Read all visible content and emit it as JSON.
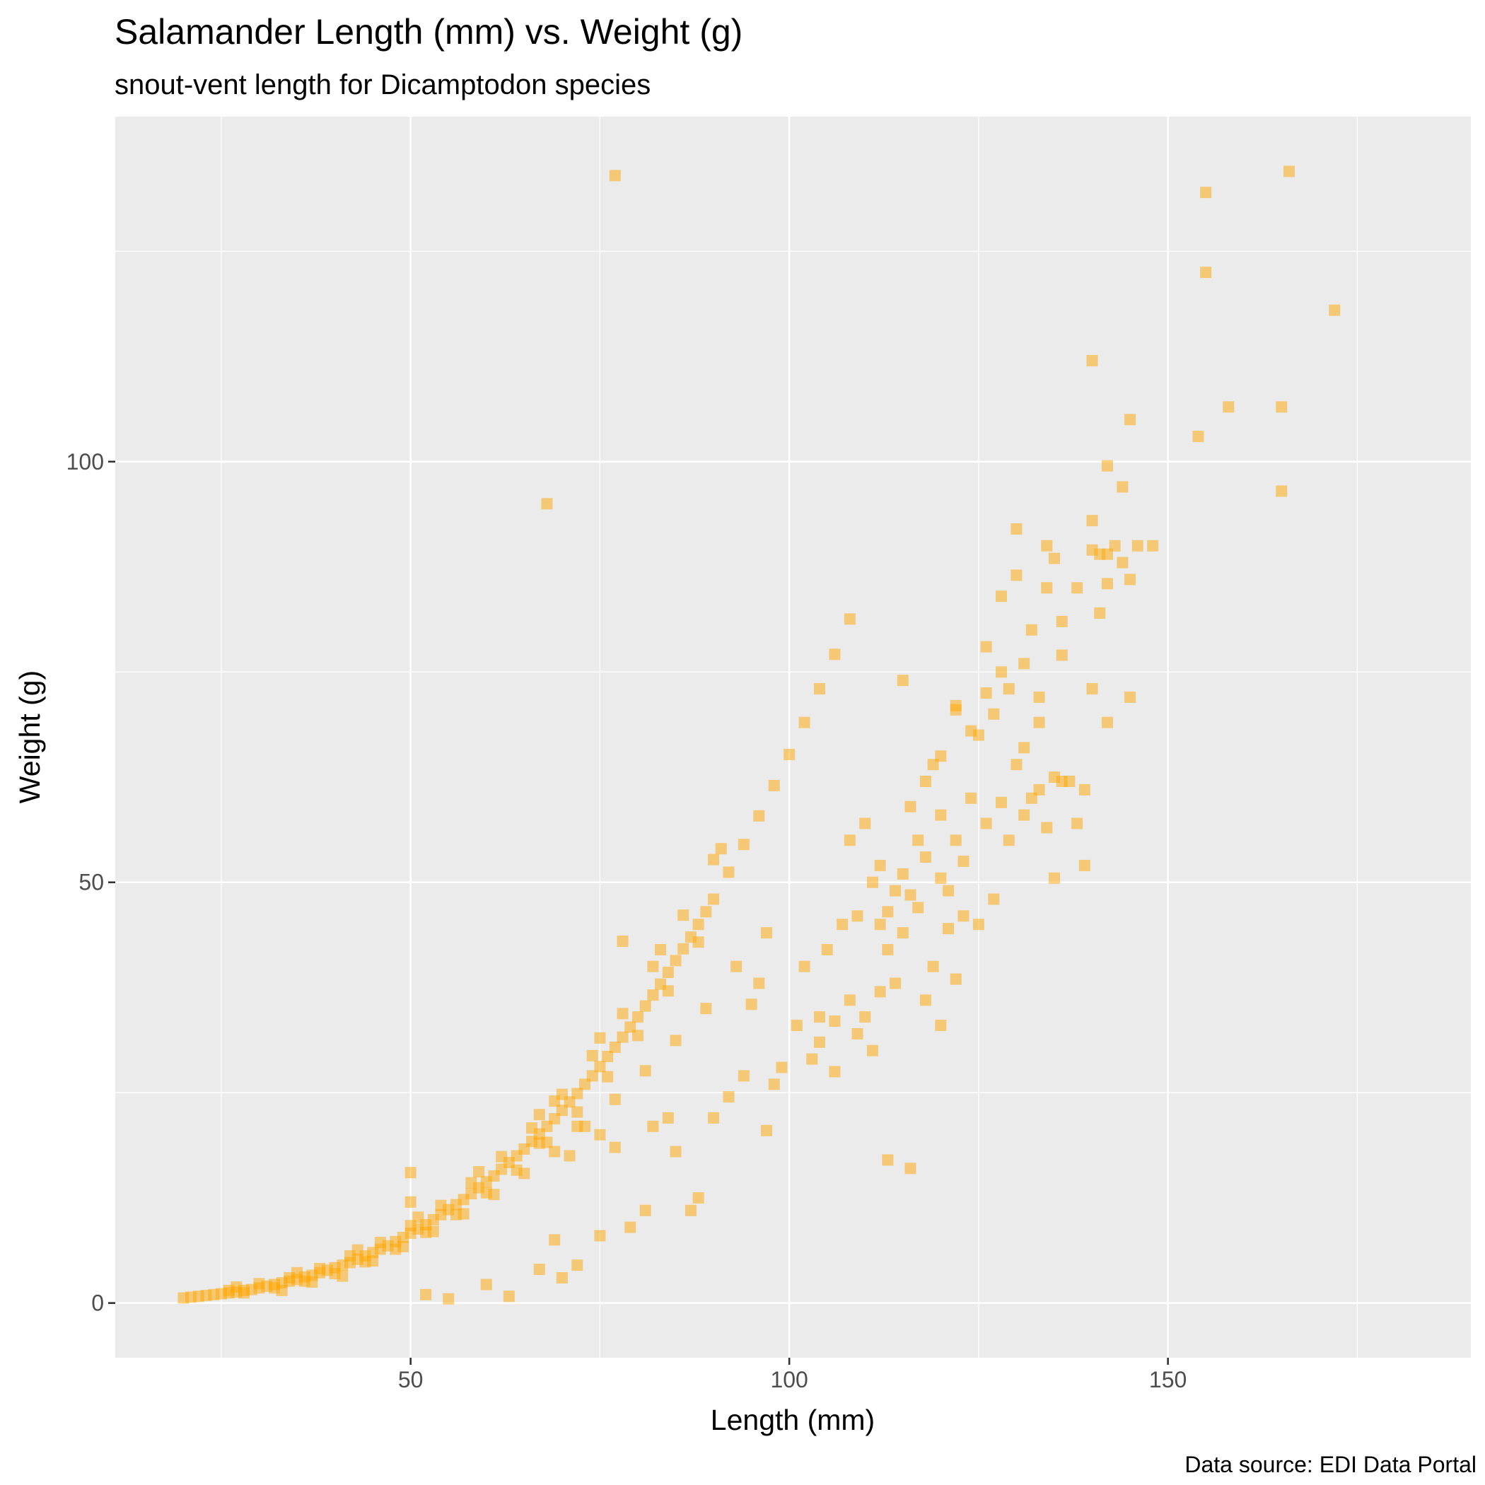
{
  "chart_data": {
    "type": "scatter",
    "title": "Salamander Length (mm) vs. Weight (g)",
    "subtitle": "snout-vent length for Dicamptodon species",
    "xlabel": "Length (mm)",
    "ylabel": "Weight (g)",
    "caption": "Data source: EDI Data Portal",
    "xlim": [
      11,
      190
    ],
    "ylim": [
      -6.5,
      141
    ],
    "x_ticks": [
      50,
      100,
      150
    ],
    "y_ticks": [
      0,
      50,
      100
    ],
    "grid": true,
    "marker": "square",
    "marker_color": "#FFA500",
    "marker_alpha": 0.5,
    "panel_background": "#EBEBEB",
    "points": [
      [
        20,
        0.6
      ],
      [
        21,
        0.7
      ],
      [
        22,
        0.8
      ],
      [
        23,
        0.9
      ],
      [
        24,
        1.0
      ],
      [
        25,
        1.1
      ],
      [
        26,
        1.2
      ],
      [
        27,
        1.3
      ],
      [
        28,
        1.5
      ],
      [
        29,
        1.6
      ],
      [
        30,
        1.8
      ],
      [
        31,
        2.0
      ],
      [
        32,
        2.2
      ],
      [
        33,
        2.4
      ],
      [
        34,
        2.6
      ],
      [
        35,
        2.8
      ],
      [
        36,
        3.1
      ],
      [
        37,
        3.3
      ],
      [
        38,
        3.6
      ],
      [
        39,
        3.9
      ],
      [
        40,
        4.2
      ],
      [
        41,
        4.5
      ],
      [
        42,
        4.8
      ],
      [
        43,
        5.2
      ],
      [
        44,
        5.6
      ],
      [
        45,
        6.0
      ],
      [
        46,
        6.4
      ],
      [
        47,
        6.8
      ],
      [
        48,
        7.3
      ],
      [
        49,
        7.8
      ],
      [
        50,
        8.3
      ],
      [
        51,
        8.8
      ],
      [
        52,
        9.3
      ],
      [
        53,
        9.9
      ],
      [
        54,
        10.5
      ],
      [
        55,
        11.1
      ],
      [
        56,
        11.7
      ],
      [
        57,
        12.3
      ],
      [
        58,
        13.0
      ],
      [
        59,
        13.7
      ],
      [
        60,
        14.4
      ],
      [
        61,
        15.1
      ],
      [
        62,
        15.9
      ],
      [
        63,
        16.7
      ],
      [
        64,
        17.5
      ],
      [
        65,
        18.3
      ],
      [
        66,
        19.2
      ],
      [
        67,
        20.1
      ],
      [
        68,
        21.0
      ],
      [
        69,
        21.9
      ],
      [
        70,
        22.9
      ],
      [
        71,
        23.9
      ],
      [
        72,
        24.9
      ],
      [
        73,
        26.0
      ],
      [
        74,
        27.0
      ],
      [
        75,
        28.1
      ],
      [
        76,
        29.3
      ],
      [
        77,
        30.4
      ],
      [
        78,
        31.6
      ],
      [
        79,
        32.8
      ],
      [
        80,
        34.0
      ],
      [
        81,
        35.3
      ],
      [
        82,
        36.6
      ],
      [
        83,
        37.9
      ],
      [
        84,
        39.3
      ],
      [
        85,
        40.7
      ],
      [
        86,
        42.1
      ],
      [
        87,
        43.5
      ],
      [
        88,
        45.0
      ],
      [
        89,
        46.5
      ],
      [
        90,
        48.0
      ],
      [
        92,
        51.2
      ],
      [
        94,
        54.5
      ],
      [
        96,
        57.9
      ],
      [
        98,
        61.5
      ],
      [
        100,
        65.2
      ],
      [
        102,
        69.0
      ],
      [
        104,
        73.0
      ],
      [
        106,
        77.1
      ],
      [
        108,
        81.3
      ],
      [
        26,
        1.5
      ],
      [
        28,
        1.2
      ],
      [
        30,
        2.3
      ],
      [
        32,
        1.8
      ],
      [
        34,
        3.0
      ],
      [
        36,
        2.6
      ],
      [
        38,
        4.1
      ],
      [
        40,
        3.5
      ],
      [
        42,
        5.6
      ],
      [
        44,
        4.9
      ],
      [
        46,
        7.2
      ],
      [
        48,
        6.4
      ],
      [
        50,
        9.2
      ],
      [
        52,
        8.4
      ],
      [
        54,
        11.6
      ],
      [
        56,
        10.5
      ],
      [
        58,
        14.3
      ],
      [
        60,
        13.1
      ],
      [
        62,
        17.4
      ],
      [
        64,
        15.8
      ],
      [
        66,
        20.8
      ],
      [
        68,
        19.1
      ],
      [
        70,
        24.8
      ],
      [
        72,
        22.7
      ],
      [
        74,
        29.4
      ],
      [
        76,
        26.9
      ],
      [
        78,
        34.4
      ],
      [
        80,
        31.8
      ],
      [
        82,
        40.0
      ],
      [
        84,
        37.1
      ],
      [
        86,
        46.1
      ],
      [
        88,
        42.9
      ],
      [
        90,
        52.7
      ],
      [
        33,
        1.5
      ],
      [
        37,
        2.5
      ],
      [
        41,
        3.2
      ],
      [
        45,
        5.0
      ],
      [
        49,
        6.7
      ],
      [
        53,
        8.5
      ],
      [
        57,
        10.6
      ],
      [
        61,
        12.9
      ],
      [
        65,
        15.4
      ],
      [
        69,
        18.0
      ],
      [
        73,
        21.0
      ],
      [
        77,
        24.2
      ],
      [
        81,
        27.6
      ],
      [
        85,
        31.2
      ],
      [
        89,
        35.0
      ],
      [
        93,
        40.0
      ],
      [
        97,
        44.0
      ],
      [
        27,
        1.9
      ],
      [
        35,
        3.6
      ],
      [
        43,
        6.3
      ],
      [
        51,
        10.2
      ],
      [
        59,
        15.6
      ],
      [
        67,
        22.4
      ],
      [
        75,
        31.5
      ],
      [
        83,
        42.0
      ],
      [
        91,
        54.0
      ],
      [
        55,
        0.5
      ],
      [
        52,
        1.0
      ],
      [
        60,
        2.2
      ],
      [
        63,
        0.8
      ],
      [
        70,
        3.0
      ],
      [
        72,
        4.5
      ],
      [
        67,
        4.0
      ],
      [
        75,
        8.0
      ],
      [
        79,
        9.0
      ],
      [
        81,
        11.0
      ],
      [
        87,
        11.0
      ],
      [
        88,
        12.5
      ],
      [
        69,
        7.5
      ],
      [
        71,
        17.5
      ],
      [
        72,
        21.0
      ],
      [
        75,
        20.0
      ],
      [
        77,
        18.5
      ],
      [
        50,
        15.5
      ],
      [
        50,
        12.0
      ],
      [
        69,
        24.0
      ],
      [
        67,
        19.0
      ],
      [
        82,
        21.0
      ],
      [
        84,
        22.0
      ],
      [
        85,
        18.0
      ],
      [
        90,
        22.0
      ],
      [
        92,
        24.5
      ],
      [
        94,
        27.0
      ],
      [
        95,
        35.5
      ],
      [
        96,
        38.0
      ],
      [
        98,
        26.0
      ],
      [
        97,
        20.5
      ],
      [
        99,
        28.0
      ],
      [
        101,
        33.0
      ],
      [
        103,
        29.0
      ],
      [
        104,
        31.0
      ],
      [
        106,
        33.5
      ],
      [
        108,
        36.0
      ],
      [
        110,
        34.0
      ],
      [
        112,
        37.0
      ],
      [
        105,
        42.0
      ],
      [
        107,
        45.0
      ],
      [
        109,
        46.0
      ],
      [
        113,
        42.0
      ],
      [
        115,
        44.0
      ],
      [
        117,
        47.0
      ],
      [
        119,
        40.0
      ],
      [
        121,
        44.5
      ],
      [
        123,
        46.0
      ],
      [
        102,
        40.0
      ],
      [
        104,
        34.0
      ],
      [
        106,
        27.5
      ],
      [
        109,
        32.0
      ],
      [
        111,
        30.0
      ],
      [
        114,
        38.0
      ],
      [
        118,
        36.0
      ],
      [
        120,
        33.0
      ],
      [
        122,
        38.5
      ],
      [
        108,
        55.0
      ],
      [
        110,
        57.0
      ],
      [
        112,
        52.0
      ],
      [
        114,
        49.0
      ],
      [
        116,
        59.0
      ],
      [
        118,
        62.0
      ],
      [
        120,
        58.0
      ],
      [
        122,
        55.0
      ],
      [
        124,
        60.0
      ],
      [
        126,
        57.0
      ],
      [
        128,
        59.5
      ],
      [
        130,
        64.0
      ],
      [
        132,
        60.0
      ],
      [
        134,
        56.5
      ],
      [
        136,
        62.0
      ],
      [
        125,
        67.5
      ],
      [
        127,
        70.0
      ],
      [
        129,
        73.0
      ],
      [
        131,
        66.0
      ],
      [
        133,
        69.0
      ],
      [
        135,
        62.5
      ],
      [
        119,
        64.0
      ],
      [
        117,
        55.0
      ],
      [
        115,
        51.0
      ],
      [
        121,
        49.0
      ],
      [
        123,
        52.5
      ],
      [
        125,
        45.0
      ],
      [
        127,
        48.0
      ],
      [
        129,
        55.0
      ],
      [
        131,
        58.0
      ],
      [
        133,
        61.0
      ],
      [
        137,
        62.0
      ],
      [
        139,
        61.0
      ],
      [
        138,
        57.0
      ],
      [
        139,
        52.0
      ],
      [
        135,
        50.5
      ],
      [
        120,
        65.0
      ],
      [
        122,
        70.5
      ],
      [
        124,
        68.0
      ],
      [
        126,
        78.0
      ],
      [
        128,
        84.0
      ],
      [
        130,
        86.5
      ],
      [
        130,
        92.0
      ],
      [
        132,
        80.0
      ],
      [
        134,
        85.0
      ],
      [
        135,
        88.5
      ],
      [
        136,
        77.0
      ],
      [
        134,
        90.0
      ],
      [
        136,
        81.0
      ],
      [
        138,
        85.0
      ],
      [
        140,
        93.0
      ],
      [
        141,
        89.0
      ],
      [
        142,
        89.0
      ],
      [
        143,
        90.0
      ],
      [
        144,
        88.0
      ],
      [
        145,
        86.0
      ],
      [
        146,
        90.0
      ],
      [
        148,
        90.0
      ],
      [
        140,
        89.5
      ],
      [
        142,
        85.5
      ],
      [
        141,
        82.0
      ],
      [
        140,
        73.0
      ],
      [
        142,
        69.0
      ],
      [
        145,
        72.0
      ],
      [
        144,
        97.0
      ],
      [
        142,
        99.5
      ],
      [
        145,
        105.0
      ],
      [
        140,
        112.0
      ],
      [
        131,
        76.0
      ],
      [
        133,
        72.0
      ],
      [
        128,
        75.0
      ],
      [
        126,
        72.5
      ],
      [
        122,
        71.0
      ],
      [
        115,
        74.0
      ],
      [
        112,
        45.0
      ],
      [
        113,
        46.5
      ],
      [
        111,
        50.0
      ],
      [
        116,
        48.5
      ],
      [
        118,
        53.0
      ],
      [
        120,
        50.5
      ],
      [
        68,
        95.0
      ],
      [
        77,
        134.0
      ],
      [
        78,
        43.0
      ],
      [
        113,
        17.0
      ],
      [
        116,
        16.0
      ],
      [
        155,
        132.0
      ],
      [
        155,
        122.5
      ],
      [
        166,
        134.5
      ],
      [
        172,
        118.0
      ],
      [
        158,
        106.5
      ],
      [
        154,
        103.0
      ],
      [
        165,
        106.5
      ],
      [
        165,
        96.5
      ]
    ]
  }
}
